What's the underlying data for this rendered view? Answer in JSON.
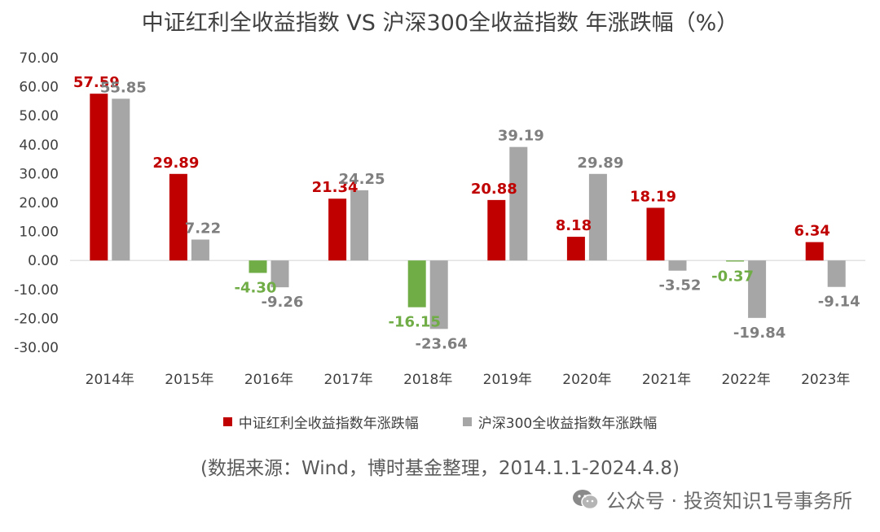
{
  "colors": {
    "series1": "#C00000",
    "series1_negative": "#70AD47",
    "series2": "#A6A6A6",
    "series2_label": "#7F7F7F",
    "axis_text": "#404040"
  },
  "chart_data": {
    "type": "bar",
    "title": "中证红利全收益指数 VS 沪深300全收益指数 年涨跌幅（%）",
    "categories": [
      "2014年",
      "2015年",
      "2016年",
      "2017年",
      "2018年",
      "2019年",
      "2020年",
      "2021年",
      "2022年",
      "2023年"
    ],
    "series": [
      {
        "name": "中证红利全收益指数年涨跌幅",
        "values": [
          57.59,
          29.89,
          -4.3,
          21.34,
          -16.15,
          20.88,
          8.18,
          18.19,
          -0.37,
          6.34
        ],
        "labels": [
          "57.59",
          "29.89",
          "-4.30",
          "21.34",
          "-16.15",
          "20.88",
          "8.18",
          "18.19",
          "-0.37",
          "6.34"
        ]
      },
      {
        "name": "沪深300全收益指数年涨跌幅",
        "values": [
          55.85,
          7.22,
          -9.26,
          24.25,
          -23.64,
          39.19,
          29.89,
          -3.52,
          -19.84,
          -9.14
        ],
        "labels": [
          "55.85",
          "7.22",
          "-9.26",
          "24.25",
          "-23.64",
          "39.19",
          "29.89",
          "-3.52",
          "-19.84",
          "-9.14"
        ]
      }
    ],
    "yticks": [
      70,
      60,
      50,
      40,
      30,
      20,
      10,
      0,
      -10,
      -20,
      -30
    ],
    "ytick_labels": [
      "70.00",
      "60.00",
      "50.00",
      "40.00",
      "30.00",
      "20.00",
      "10.00",
      "0.00",
      "-10.00",
      "-20.00",
      "-30.00"
    ],
    "ylim": [
      -30,
      70
    ],
    "grid": false,
    "legend_position": "bottom"
  },
  "source_note": "(数据来源：Wind，博时基金整理，2014.1.1-2024.4.8)",
  "watermark": {
    "icon": "wechat-icon",
    "text": "公众号 · 投资知识1号事务所"
  }
}
